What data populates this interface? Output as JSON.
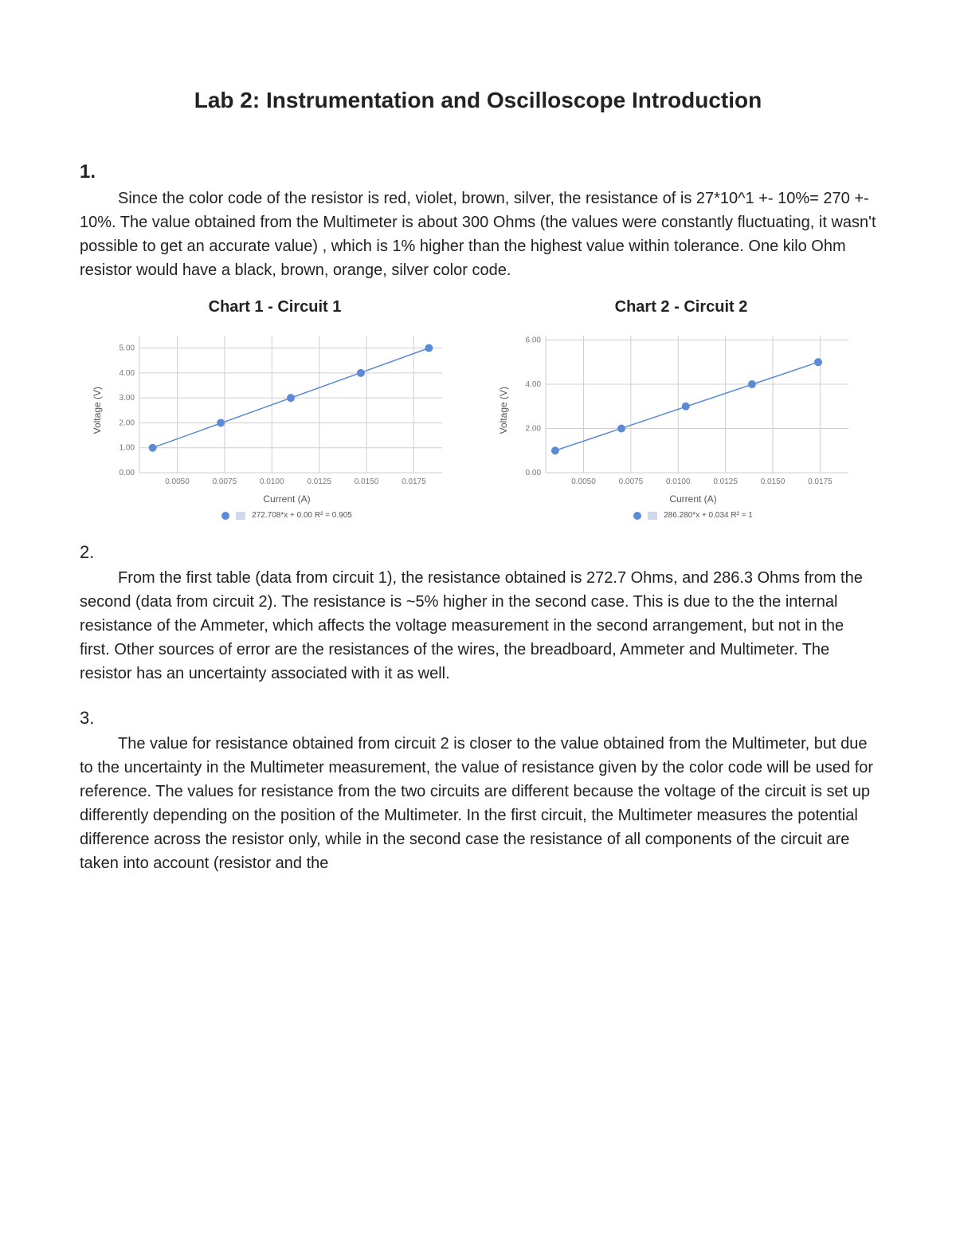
{
  "title": "Lab 2: Instrumentation and Oscilloscope Introduction",
  "sections": {
    "s1": {
      "num": "1.",
      "text": "Since the color code of the resistor is red, violet, brown, silver, the resistance of is 27*10^1 +- 10%= 270 +- 10%. The value obtained from the Multimeter is about 300 Ohms (the values were constantly fluctuating, it wasn't possible to get an accurate value) , which is 1% higher than the highest value within tolerance. One kilo Ohm resistor would have a black, brown, orange, silver color code."
    },
    "s2": {
      "num": "2.",
      "text": "From the first table (data from circuit 1), the resistance obtained is 272.7 Ohms, and 286.3 Ohms from the second (data from circuit 2). The resistance is ~5% higher in the second case. This is due to the the internal resistance of the Ammeter, which affects the voltage measurement in the second arrangement, but not in the first. Other sources of error are the resistances of the wires, the breadboard, Ammeter and Multimeter. The resistor has an uncertainty associated with it as well."
    },
    "s3": {
      "num": "3.",
      "text": "The value for resistance obtained from circuit 2 is closer to the value obtained from the Multimeter, but due to the uncertainty in the Multimeter measurement, the value of resistance given by the color code will be used for reference. The values for resistance from the two circuits are different because the voltage of the circuit is set up differently depending on the position of the Multimeter. In the first circuit, the Multimeter measures the potential difference across the resistor only, while in the second case the resistance of all components of the circuit are taken into account (resistor and the"
    }
  },
  "charts": {
    "chart1": {
      "title": "Chart 1 - Circuit 1",
      "type": "scatter-line",
      "xlabel": "Current (A)",
      "ylabel": "Voltage (V)",
      "legend_text": "272.708*x + 0.00  R² = 0.905",
      "point_color": "#5b8bd4",
      "line_color": "#5b8bd4",
      "grid_color": "#cfcfcf",
      "axis_color": "#888888",
      "tick_color": "#777777",
      "background_color": "#ffffff",
      "tick_fontsize": 10,
      "label_fontsize": 12,
      "line_width": 1.5,
      "marker_radius": 5,
      "xlim": [
        0.003,
        0.019
      ],
      "ylim": [
        0.0,
        5.5
      ],
      "xticks": [
        0.005,
        0.0075,
        0.01,
        0.0125,
        0.015,
        0.0175
      ],
      "xtick_labels": [
        "0.0050",
        "0.0075",
        "0.0100",
        "0.0125",
        "0.0150",
        "0.0175"
      ],
      "yticks": [
        0.0,
        1.0,
        2.0,
        3.0,
        4.0,
        5.0
      ],
      "ytick_labels": [
        "0.00",
        "1.00",
        "2.00",
        "3.00",
        "4.00",
        "5.00"
      ],
      "points_x": [
        0.0037,
        0.0073,
        0.011,
        0.0147,
        0.0183
      ],
      "points_y": [
        1.0,
        2.0,
        3.0,
        4.0,
        5.0
      ]
    },
    "chart2": {
      "title": "Chart 2 - Circuit 2",
      "type": "scatter-line",
      "xlabel": "Current (A)",
      "ylabel": "Voltage (V)",
      "legend_text": "286.280*x + 0.034  R² = 1",
      "point_color": "#5b8bd4",
      "line_color": "#5b8bd4",
      "grid_color": "#cfcfcf",
      "axis_color": "#888888",
      "tick_color": "#777777",
      "background_color": "#ffffff",
      "tick_fontsize": 10,
      "label_fontsize": 12,
      "line_width": 1.5,
      "marker_radius": 5,
      "xlim": [
        0.003,
        0.019
      ],
      "ylim": [
        0.0,
        6.2
      ],
      "xticks": [
        0.005,
        0.0075,
        0.01,
        0.0125,
        0.015,
        0.0175
      ],
      "xtick_labels": [
        "0.0050",
        "0.0075",
        "0.0100",
        "0.0125",
        "0.0150",
        "0.0175"
      ],
      "yticks": [
        0.0,
        2.0,
        4.0,
        6.0
      ],
      "ytick_labels": [
        "0.00",
        "2.00",
        "4.00",
        "6.00"
      ],
      "points_x": [
        0.0035,
        0.007,
        0.0104,
        0.0139,
        0.0174
      ],
      "points_y": [
        1.0,
        2.0,
        3.0,
        4.0,
        5.0
      ]
    }
  }
}
